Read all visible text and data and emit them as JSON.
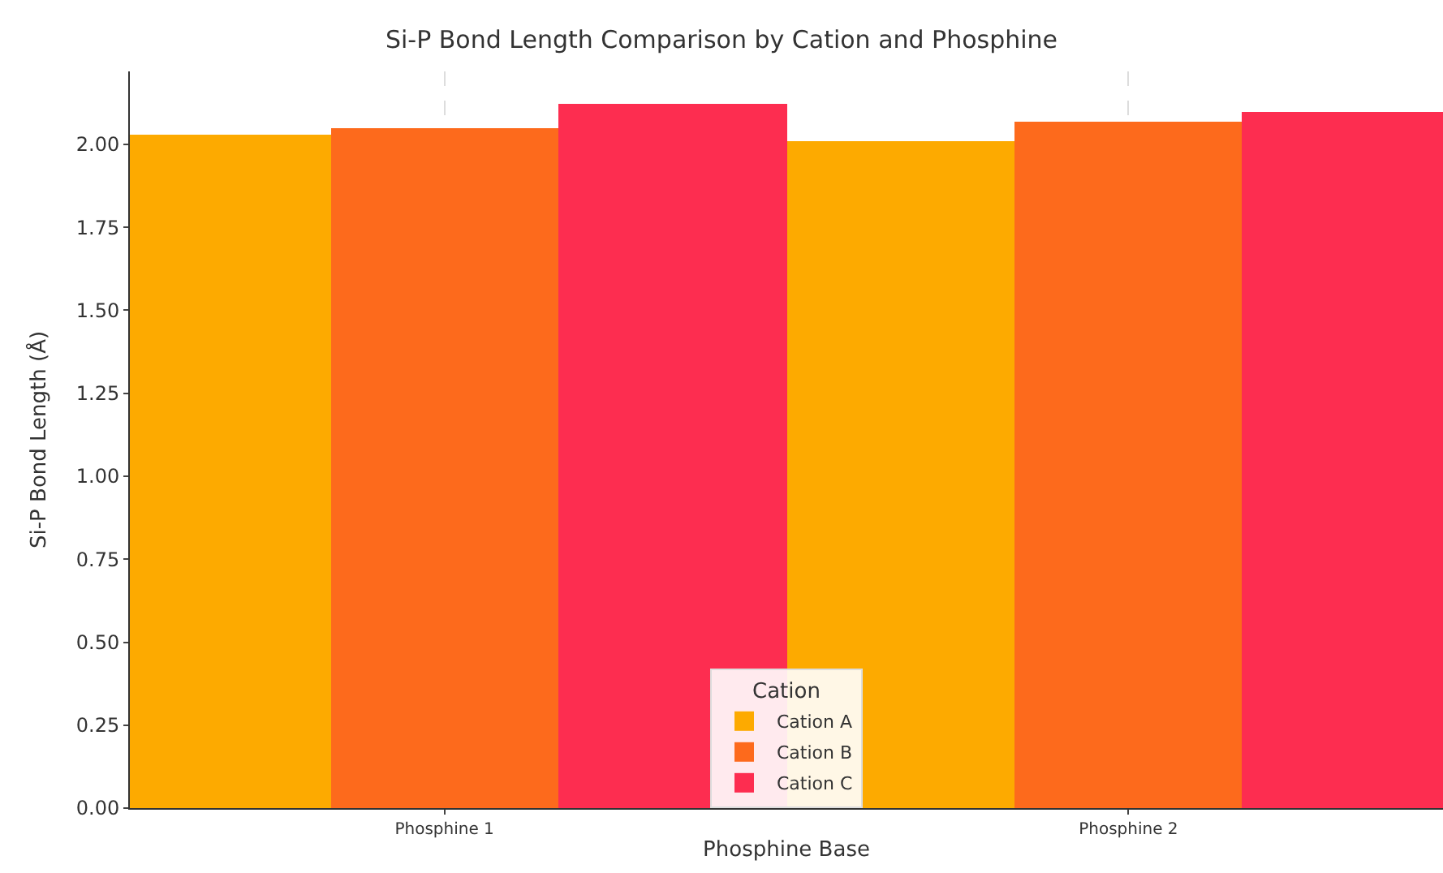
{
  "chart_data": {
    "type": "bar",
    "title": "Si-P Bond Length Comparison by Cation and Phosphine",
    "xlabel": "Phosphine Base",
    "ylabel": "Si-P Bond Length (Å)",
    "legend_title": "Cation",
    "categories": [
      "Phosphine 1",
      "Phosphine 2"
    ],
    "series": [
      {
        "name": "Cation A",
        "color": "#fdaa00",
        "values": [
          2.03,
          2.01
        ]
      },
      {
        "name": "Cation B",
        "color": "#fd6a1c",
        "values": [
          2.05,
          2.07
        ]
      },
      {
        "name": "Cation C",
        "color": "#fd2d50",
        "values": [
          2.12,
          2.1
        ]
      }
    ],
    "ylim": [
      0,
      2.22
    ],
    "yticks": [
      {
        "value": 0,
        "label": "0.00"
      },
      {
        "value": 0.25,
        "label": "0.25"
      },
      {
        "value": 0.5,
        "label": "0.50"
      },
      {
        "value": 0.75,
        "label": "0.75"
      },
      {
        "value": 1,
        "label": "1.00"
      },
      {
        "value": 1.25,
        "label": "1.25"
      },
      {
        "value": 1.5,
        "label": "1.50"
      },
      {
        "value": 1.75,
        "label": "1.75"
      },
      {
        "value": 2,
        "label": "2.00"
      }
    ],
    "grid": true,
    "legend": "bottom"
  }
}
